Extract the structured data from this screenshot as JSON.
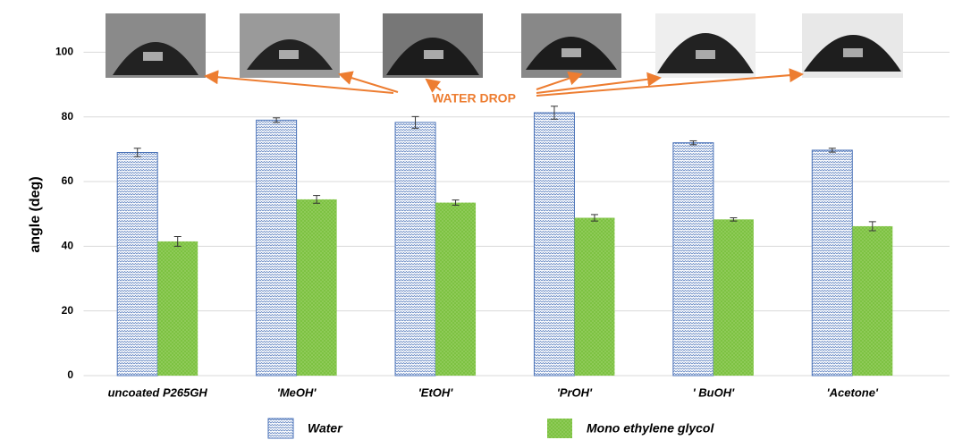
{
  "chart_data": {
    "type": "bar",
    "y_label": "angle  (deg)",
    "annotation": "WATER DROP",
    "categories": [
      "uncoated P265GH",
      "'MeOH'",
      "'EtOH'",
      "'PrOH'",
      "' BuOH'",
      "'Acetone'"
    ],
    "series": [
      {
        "name": "Water",
        "color": "#4a72b8",
        "values": [
          69,
          79,
          78.3,
          81.3,
          72,
          69.7
        ],
        "errors": [
          1.3,
          0.7,
          1.8,
          2,
          0.6,
          0.6
        ]
      },
      {
        "name": "Mono ethylene glycol",
        "color": "#7dc242",
        "values": [
          41.5,
          54.5,
          53.5,
          48.8,
          48.3,
          46.2
        ],
        "errors": [
          1.5,
          1.2,
          0.8,
          1,
          0.5,
          1.4
        ]
      }
    ],
    "ylim": [
      0,
      112
    ],
    "yticks": [
      0,
      20,
      40,
      60,
      80,
      100
    ],
    "grid": true
  }
}
